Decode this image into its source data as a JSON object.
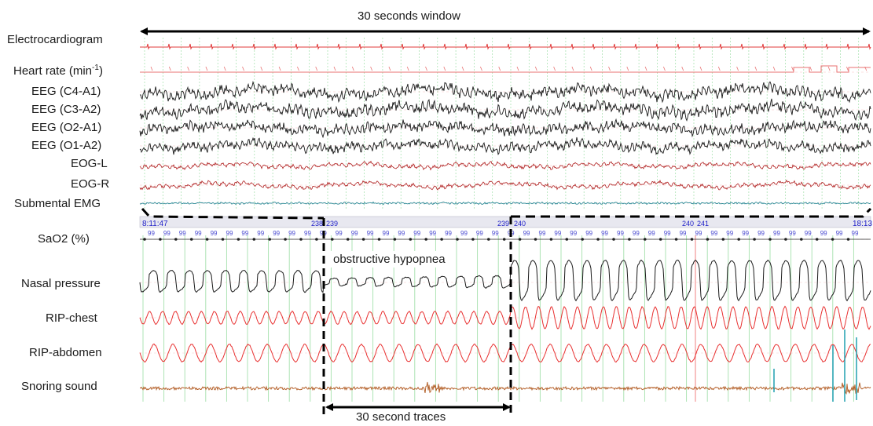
{
  "top_window_label": "30 seconds window",
  "bottom_window_label": "30 second traces",
  "annotation": "obstructive hypopnea",
  "top_channels": [
    {
      "name": "ecg",
      "label": "Electrocardiogram",
      "color": "#e03a3a"
    },
    {
      "name": "heart-rate",
      "label_main": "Heart rate (min",
      "label_sup": "-1",
      "label_end": ")",
      "color": "#e87070"
    },
    {
      "name": "eeg-c4a1",
      "label": "EEG (C4-A1)",
      "color": "#1a1a1a"
    },
    {
      "name": "eeg-c3a2",
      "label": "EEG (C3-A2)",
      "color": "#1a1a1a"
    },
    {
      "name": "eeg-o2a1",
      "label": "EEG (O2-A1)",
      "color": "#1a1a1a"
    },
    {
      "name": "eeg-o1a2",
      "label": "EEG (O1-A2)",
      "color": "#1a1a1a"
    },
    {
      "name": "eog-l",
      "label": "EOG-L",
      "color": "#b02020"
    },
    {
      "name": "eog-r",
      "label": "EOG-R",
      "color": "#b02020"
    },
    {
      "name": "submental-emg",
      "label": "Submental EMG",
      "color": "#2a8a96"
    }
  ],
  "bottom_channels": [
    {
      "name": "sao2",
      "label": "SaO2 (%)",
      "color": "#4a4ad0"
    },
    {
      "name": "nasal-pressure",
      "label": "Nasal pressure",
      "color": "#1a1a1a"
    },
    {
      "name": "rip-chest",
      "label": "RIP-chest",
      "color": "#e83030"
    },
    {
      "name": "rip-abdomen",
      "label": "RIP-abdomen",
      "color": "#e83030"
    },
    {
      "name": "snoring-sound",
      "label": "Snoring sound",
      "color": "#b05a20"
    }
  ],
  "timebar": {
    "start_time": "8:11:47",
    "end_time": "18:13",
    "epochs": [
      "238",
      "239",
      "239",
      "240",
      "240",
      "241"
    ]
  },
  "sao2_value": "99",
  "colors": {
    "grid_green": "#7fd48a",
    "grid_red": "#f2a0a0",
    "timebar_blue": "#2020c8",
    "arrow": "#000000"
  }
}
